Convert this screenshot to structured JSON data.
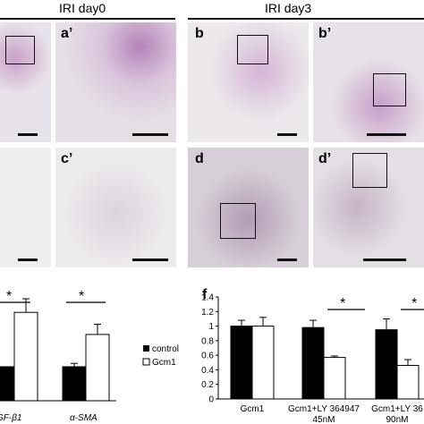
{
  "headers": {
    "left": "IRI day0",
    "right": "IRI day3"
  },
  "panels": {
    "a_prime": "a’",
    "b": "b",
    "b_prime": "b’",
    "c_prime": "c’",
    "d": "d",
    "d_prime": "d’"
  },
  "left_chart": {
    "significance": [
      "*",
      "*"
    ],
    "xtick_labels": [
      "GF-β1",
      "α-SMA"
    ],
    "legend": {
      "control": "control",
      "gcm1": "Gcm1"
    }
  },
  "right_chart_label": "f",
  "colors": {
    "control": "#000000",
    "gcm1": "#ffffff",
    "stain_purple": "#a678a8",
    "stain_green": "#3a8a4a"
  },
  "chart_data": [
    {
      "type": "bar",
      "categories": [
        "GF-β1",
        "α-SMA"
      ],
      "series": [
        {
          "name": "control",
          "values": [
            1.0,
            1.0
          ]
        },
        {
          "name": "Gcm1",
          "values": [
            2.6,
            1.95
          ]
        }
      ],
      "errors": [
        {
          "name": "control",
          "values": [
            0,
            0.1
          ]
        },
        {
          "name": "Gcm1",
          "values": [
            0.4,
            0.3
          ]
        }
      ]
    },
    {
      "type": "bar",
      "categories": [
        "Gcm1",
        "Gcm1+LY 364947 45nM",
        "Gcm1+LY 36 90nM"
      ],
      "xtick_lines": [
        [
          "Gcm1"
        ],
        [
          "Gcm1+LY 364947",
          "45nM"
        ],
        [
          "Gcm1+LY 36",
          "90nM"
        ]
      ],
      "yticks": [
        "0",
        "0.2",
        "0.4",
        "0.6",
        "0.8",
        "1",
        "1.2",
        "1.4"
      ],
      "ylim": [
        0,
        1.4
      ],
      "series": [
        {
          "name": "",
          "values": [
            1.0,
            0.98,
            0.95
          ]
        },
        {
          "name": "",
          "values": [
            1.0,
            0.57,
            0.46
          ]
        }
      ],
      "errors": [
        {
          "name": "",
          "values": [
            0.08,
            0.1,
            0.15
          ]
        },
        {
          "name": "",
          "values": [
            0.12,
            0.02,
            0.08
          ]
        }
      ],
      "significance": [
        "*",
        "*"
      ]
    }
  ]
}
